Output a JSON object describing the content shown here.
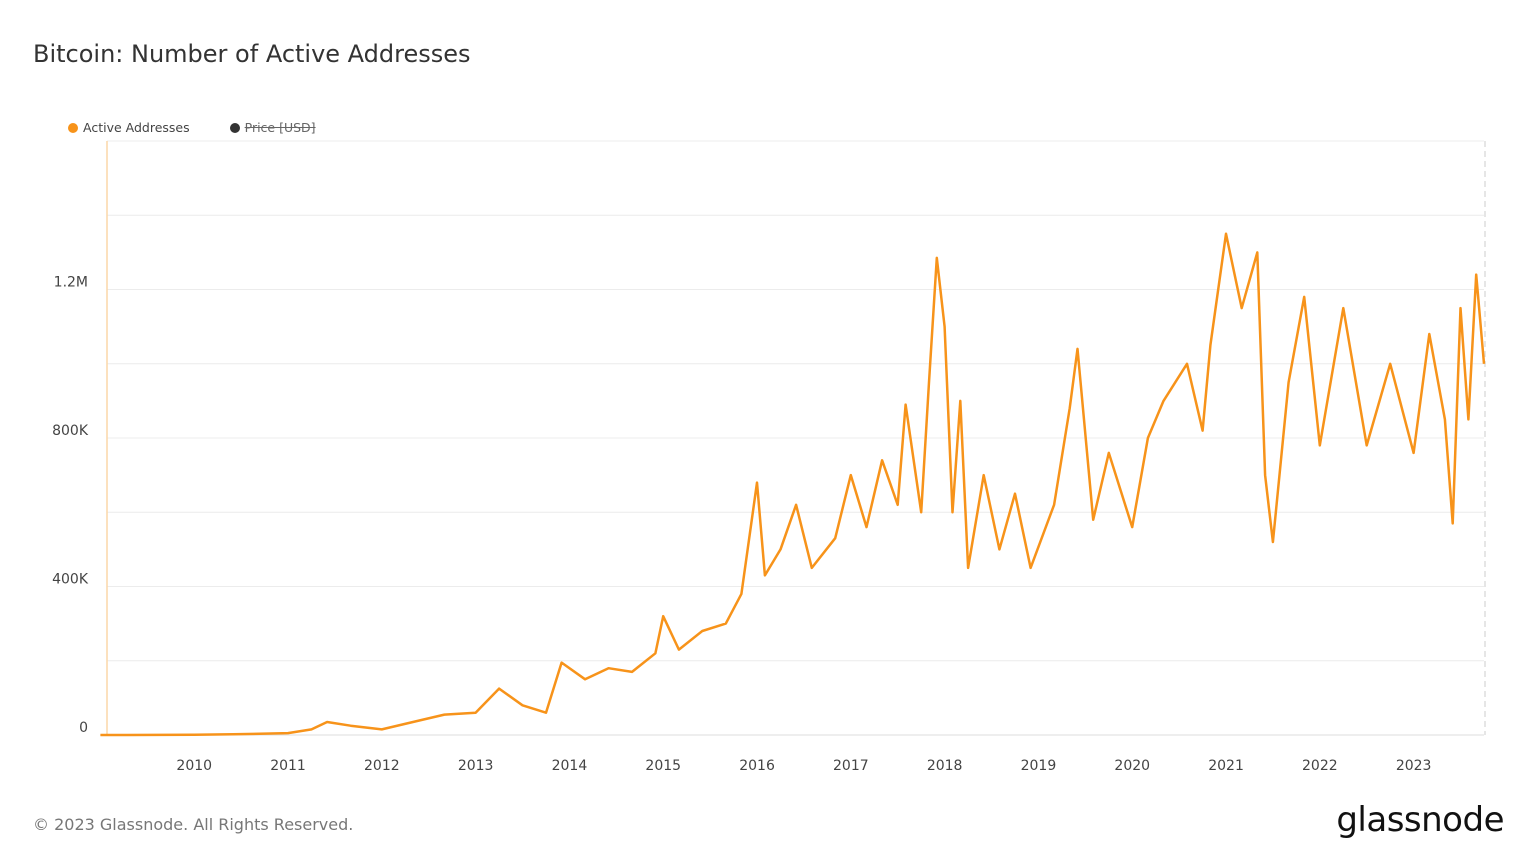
{
  "title": "Bitcoin: Number of Active Addresses",
  "footer": "© 2023 Glassnode. All Rights Reserved.",
  "logo": "glassnode",
  "colors": {
    "active": "#f7931a",
    "price": "#333333",
    "grid": "#ececec"
  },
  "chart_data": {
    "type": "line",
    "title": "Bitcoin: Number of Active Addresses",
    "legend": [
      {
        "name": "Active Addresses",
        "color": "#f7931a",
        "visible": true
      },
      {
        "name": "Price [USD]",
        "color": "#333333",
        "visible": false
      }
    ],
    "legend_placement": "top-left",
    "grid": true,
    "xlim": [
      "2009-01",
      "2023-10"
    ],
    "ylim": [
      0,
      1600000
    ],
    "x_ticks": [
      "2010",
      "2011",
      "2012",
      "2013",
      "2014",
      "2015",
      "2016",
      "2017",
      "2018",
      "2019",
      "2020",
      "2021",
      "2022",
      "2023"
    ],
    "y_ticks": [
      {
        "v": 0,
        "label": "0"
      },
      {
        "v": 400000,
        "label": "400K"
      },
      {
        "v": 800000,
        "label": "800K"
      },
      {
        "v": 1200000,
        "label": "1.2M"
      }
    ],
    "series": [
      {
        "name": "Active Addresses",
        "points": [
          [
            "2009-01",
            0
          ],
          [
            "2010-01",
            500
          ],
          [
            "2010-06",
            2000
          ],
          [
            "2011-01",
            5000
          ],
          [
            "2011-04",
            15000
          ],
          [
            "2011-06",
            35000
          ],
          [
            "2011-09",
            25000
          ],
          [
            "2012-01",
            15000
          ],
          [
            "2012-06",
            40000
          ],
          [
            "2012-09",
            55000
          ],
          [
            "2013-01",
            60000
          ],
          [
            "2013-04",
            125000
          ],
          [
            "2013-07",
            80000
          ],
          [
            "2013-10",
            60000
          ],
          [
            "2013-12",
            195000
          ],
          [
            "2014-03",
            150000
          ],
          [
            "2014-06",
            180000
          ],
          [
            "2014-09",
            170000
          ],
          [
            "2014-12",
            220000
          ],
          [
            "2015-01",
            320000
          ],
          [
            "2015-03",
            230000
          ],
          [
            "2015-06",
            280000
          ],
          [
            "2015-09",
            300000
          ],
          [
            "2015-11",
            380000
          ],
          [
            "2016-01",
            680000
          ],
          [
            "2016-02",
            430000
          ],
          [
            "2016-04",
            500000
          ],
          [
            "2016-06",
            620000
          ],
          [
            "2016-08",
            450000
          ],
          [
            "2016-11",
            530000
          ],
          [
            "2017-01",
            700000
          ],
          [
            "2017-03",
            560000
          ],
          [
            "2017-05",
            740000
          ],
          [
            "2017-07",
            620000
          ],
          [
            "2017-08",
            890000
          ],
          [
            "2017-10",
            600000
          ],
          [
            "2017-11",
            950000
          ],
          [
            "2017-12",
            1285000
          ],
          [
            "2018-01",
            1100000
          ],
          [
            "2018-02",
            600000
          ],
          [
            "2018-03",
            900000
          ],
          [
            "2018-04",
            450000
          ],
          [
            "2018-06",
            700000
          ],
          [
            "2018-08",
            500000
          ],
          [
            "2018-10",
            650000
          ],
          [
            "2018-12",
            450000
          ],
          [
            "2019-03",
            620000
          ],
          [
            "2019-05",
            880000
          ],
          [
            "2019-06",
            1040000
          ],
          [
            "2019-08",
            580000
          ],
          [
            "2019-10",
            760000
          ],
          [
            "2020-01",
            560000
          ],
          [
            "2020-03",
            800000
          ],
          [
            "2020-05",
            900000
          ],
          [
            "2020-08",
            1000000
          ],
          [
            "2020-10",
            820000
          ],
          [
            "2020-11",
            1050000
          ],
          [
            "2021-01",
            1350000
          ],
          [
            "2021-03",
            1150000
          ],
          [
            "2021-05",
            1300000
          ],
          [
            "2021-06",
            700000
          ],
          [
            "2021-07",
            520000
          ],
          [
            "2021-09",
            950000
          ],
          [
            "2021-11",
            1180000
          ],
          [
            "2022-01",
            780000
          ],
          [
            "2022-04",
            1150000
          ],
          [
            "2022-07",
            780000
          ],
          [
            "2022-10",
            1000000
          ],
          [
            "2023-01",
            760000
          ],
          [
            "2023-03",
            1080000
          ],
          [
            "2023-05",
            850000
          ],
          [
            "2023-06",
            570000
          ],
          [
            "2023-07",
            1150000
          ],
          [
            "2023-08",
            850000
          ],
          [
            "2023-09",
            1240000
          ],
          [
            "2023-10",
            1000000
          ]
        ]
      }
    ]
  }
}
